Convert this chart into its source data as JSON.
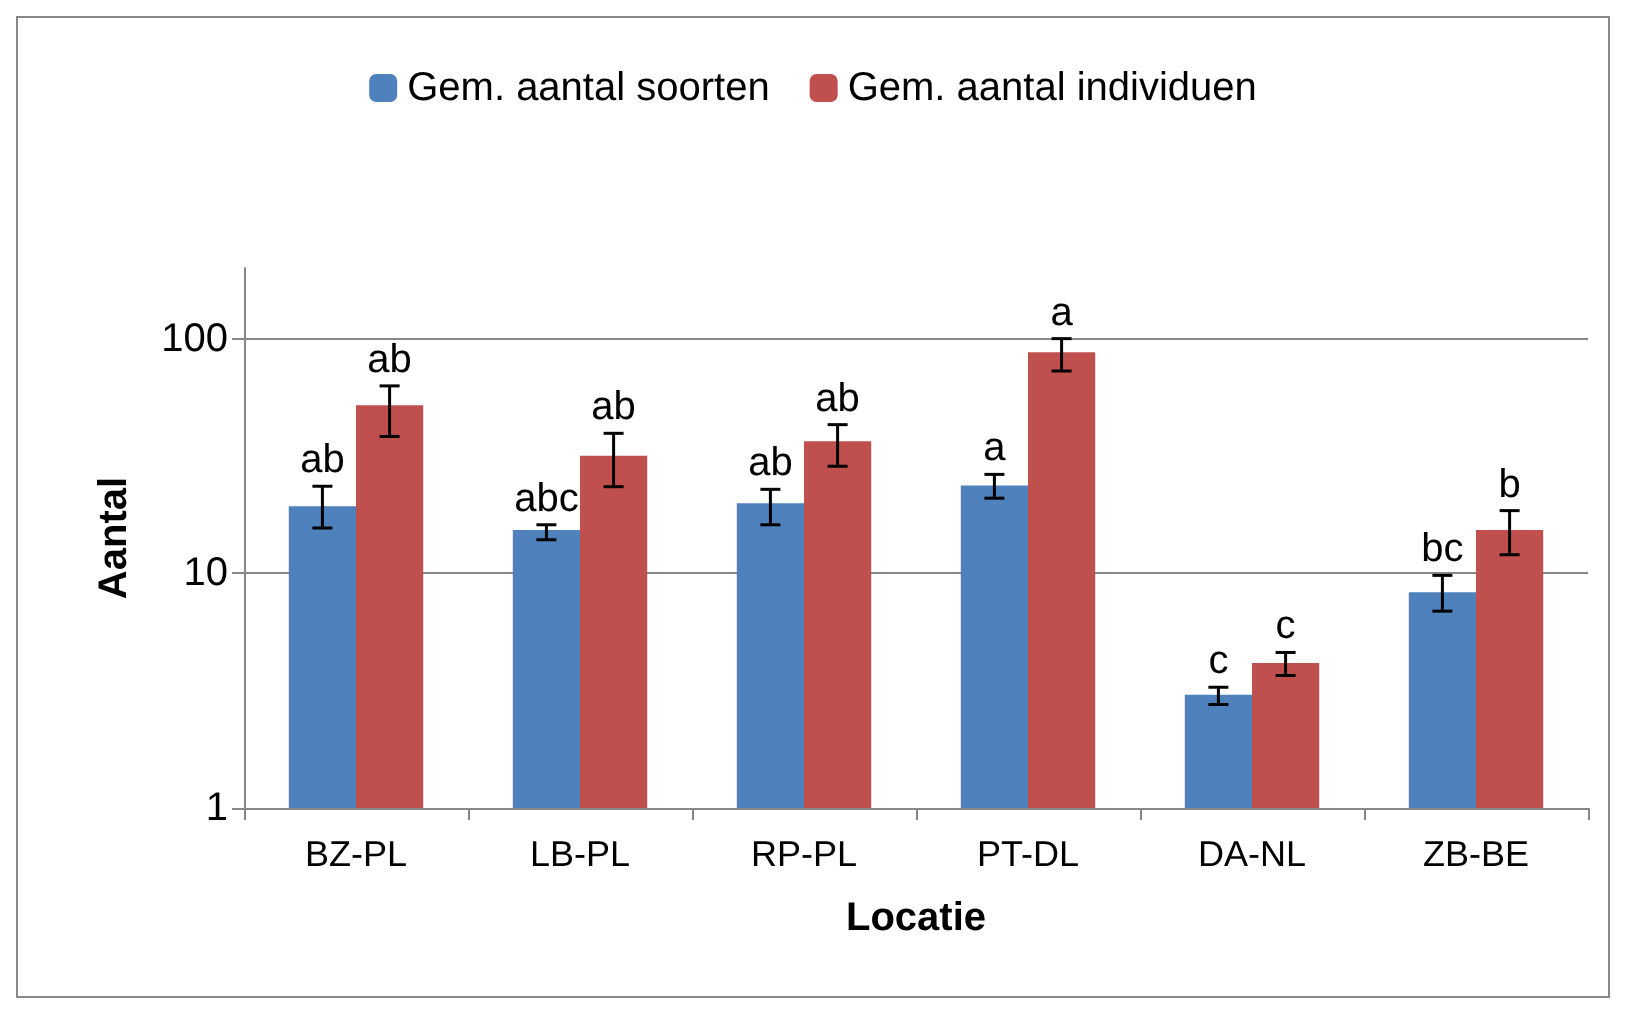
{
  "chart_data": {
    "type": "bar",
    "xlabel": "Locatie",
    "ylabel": "Aantal",
    "categories": [
      "BZ-PL",
      "LB-PL",
      "RP-PL",
      "PT-DL",
      "DA-NL",
      "ZB-BE"
    ],
    "series": [
      {
        "name": "Gem. aantal soorten",
        "color": "#4f81bd",
        "values": [
          19.3,
          15.3,
          19.9,
          23.7,
          3.04,
          8.3
        ],
        "errors": [
          [
            15.6,
            23.5
          ],
          [
            13.9,
            16.1
          ],
          [
            16.1,
            22.8
          ],
          [
            20.9,
            26.4
          ],
          [
            2.76,
            3.27
          ],
          [
            6.9,
            9.8
          ]
        ],
        "value_labels": [
          "ab",
          "abc",
          "ab",
          "a",
          "c",
          "bc"
        ]
      },
      {
        "name": "Gem. aantal individuen",
        "color": "#c0504d",
        "values": [
          52,
          31.7,
          36.5,
          87.5,
          4.15,
          15.3
        ],
        "errors": [
          [
            38.3,
            62.9
          ],
          [
            23.4,
            39.5
          ],
          [
            28.6,
            43
          ],
          [
            72.8,
            100
          ],
          [
            3.67,
            4.6
          ],
          [
            12,
            18.5
          ]
        ],
        "value_labels": [
          "ab",
          "ab",
          "ab",
          "a",
          "c",
          "b"
        ]
      }
    ],
    "log": "y",
    "ylim": [
      1,
      200
    ],
    "yticks": [
      1,
      10,
      100
    ],
    "grid": "y",
    "legend": "top"
  }
}
